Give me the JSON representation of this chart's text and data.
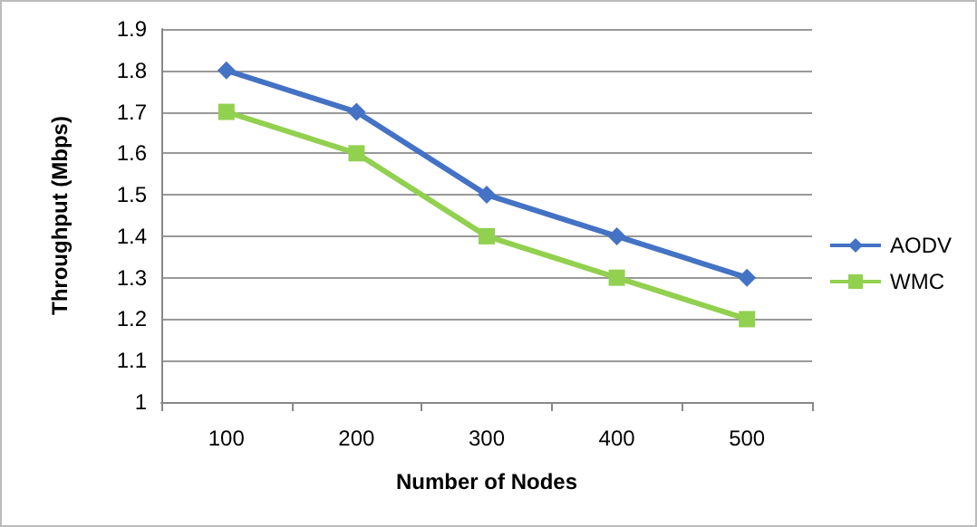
{
  "chart_data": {
    "type": "line",
    "xlabel": "Number of Nodes",
    "ylabel": "Throughput (Mbps)",
    "categories": [
      "100",
      "200",
      "300",
      "400",
      "500"
    ],
    "series": [
      {
        "name": "AODV",
        "color": "#4472c4",
        "marker": "diamond",
        "values": [
          1.8,
          1.7,
          1.5,
          1.4,
          1.3
        ]
      },
      {
        "name": "WMC",
        "color": "#92d050",
        "marker": "square",
        "values": [
          1.7,
          1.6,
          1.4,
          1.3,
          1.2
        ]
      }
    ],
    "ylim": [
      1,
      1.9
    ],
    "yticks": [
      1,
      1.1,
      1.2,
      1.3,
      1.4,
      1.5,
      1.6,
      1.7,
      1.8,
      1.9
    ],
    "grid": "y",
    "legend": "right"
  }
}
